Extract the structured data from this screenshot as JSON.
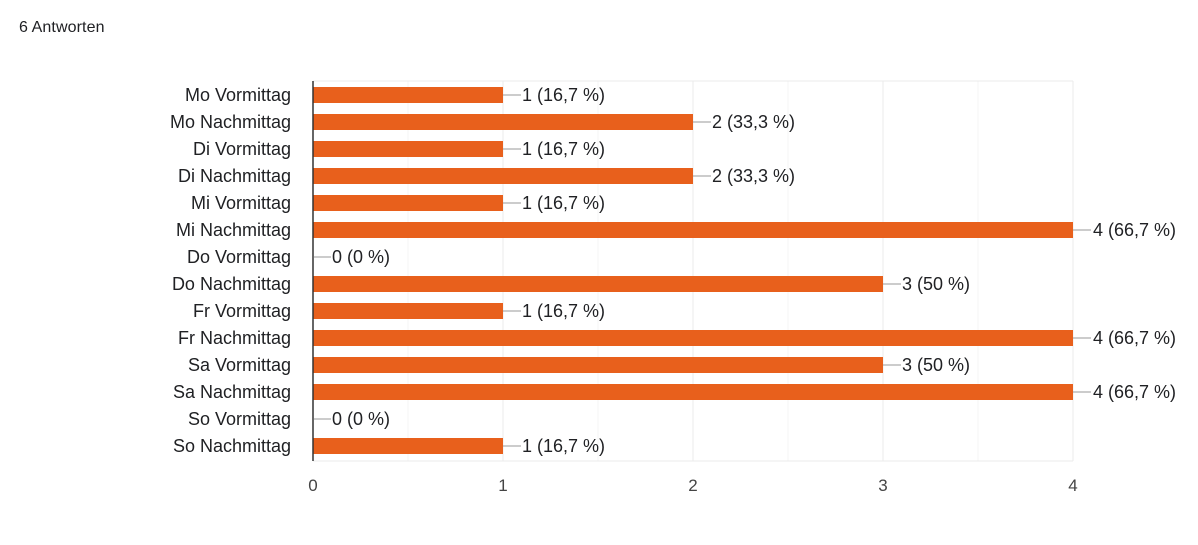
{
  "header": {
    "response_count": "6 Antworten"
  },
  "chart_data": {
    "type": "bar",
    "orientation": "horizontal",
    "categories": [
      "Mo Vormittag",
      "Mo Nachmittag",
      "Di Vormittag",
      "Di Nachmittag",
      "Mi Vormittag",
      "Mi Nachmittag",
      "Do Vormittag",
      "Do Nachmittag",
      "Fr Vormittag",
      "Fr Nachmittag",
      "Sa Vormittag",
      "Sa Nachmittag",
      "So Vormittag",
      "So Nachmittag"
    ],
    "values": [
      1,
      2,
      1,
      2,
      1,
      4,
      0,
      3,
      1,
      4,
      3,
      4,
      0,
      1
    ],
    "value_labels": [
      "1 (16,7 %)",
      "2 (33,3 %)",
      "1 (16,7 %)",
      "2 (33,3 %)",
      "1 (16,7 %)",
      "4 (66,7 %)",
      "0 (0 %)",
      "3 (50 %)",
      "1 (16,7 %)",
      "4 (66,7 %)",
      "3 (50 %)",
      "4 (66,7 %)",
      "0 (0 %)",
      "1 (16,7 %)"
    ],
    "xlim": [
      0,
      4
    ],
    "xticks": [
      "0",
      "1",
      "2",
      "3",
      "4"
    ],
    "title": "",
    "xlabel": "",
    "ylabel": "",
    "grid": true,
    "legend": "none",
    "colors": {
      "bar": "#E8601C",
      "grid": "#EBEBEB",
      "axis": "#333333",
      "label_line": "#999999",
      "text": "#202124"
    }
  }
}
